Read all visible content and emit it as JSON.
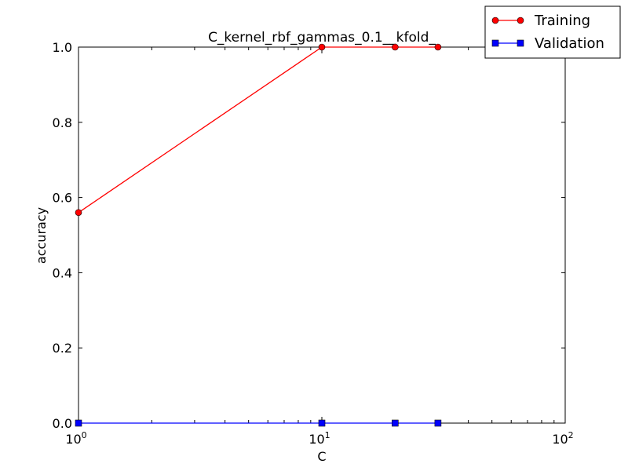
{
  "chart_data": {
    "type": "line",
    "title": "C_kernel_rbf_gammas_0.1__kfold_",
    "xlabel": "C",
    "ylabel": "accuracy",
    "xscale": "log",
    "xlim": [
      1,
      100
    ],
    "ylim": [
      0.0,
      1.0
    ],
    "x_ticks": [
      {
        "value": 1,
        "base": "10",
        "exp": "0"
      },
      {
        "value": 10,
        "base": "10",
        "exp": "1"
      },
      {
        "value": 100,
        "base": "10",
        "exp": "2"
      }
    ],
    "y_ticks": [
      {
        "value": 0.0,
        "label": "0.0"
      },
      {
        "value": 0.2,
        "label": "0.2"
      },
      {
        "value": 0.4,
        "label": "0.4"
      },
      {
        "value": 0.6,
        "label": "0.6"
      },
      {
        "value": 0.8,
        "label": "0.8"
      },
      {
        "value": 1.0,
        "label": "1.0"
      }
    ],
    "grid": false,
    "legend_position": "top-right",
    "series": [
      {
        "name": "Training",
        "color": "#ff0000",
        "marker": "circle",
        "x": [
          1,
          10,
          20,
          30
        ],
        "y": [
          0.56,
          1.0,
          1.0,
          1.0
        ]
      },
      {
        "name": "Validation",
        "color": "#0000ff",
        "marker": "square",
        "x": [
          1,
          10,
          20,
          30
        ],
        "y": [
          0.0,
          0.0,
          0.0,
          0.0
        ]
      }
    ]
  }
}
